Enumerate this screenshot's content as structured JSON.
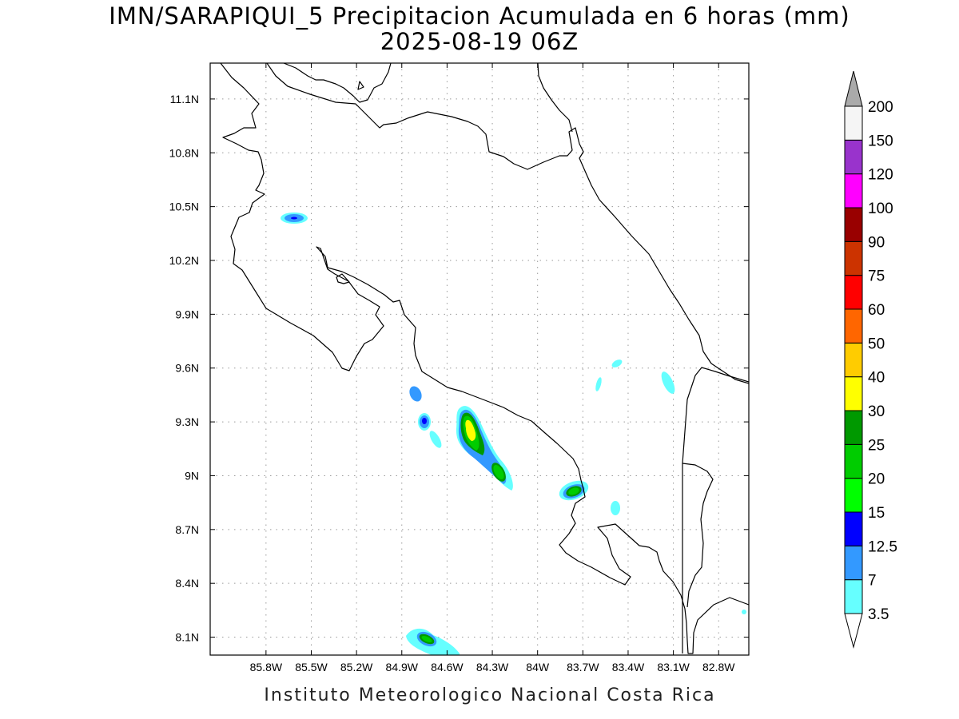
{
  "title": {
    "line1": "IMN/SARAPIQUI_5 Precipitacion Acumulada en 6 horas (mm)",
    "line2": "2025-08-19 06Z"
  },
  "footer": "Instituto Meteorologico Nacional Costa Rica",
  "map": {
    "lon_range": [
      -86.17,
      -82.6
    ],
    "lat_range": [
      8.0,
      11.3
    ],
    "lon_ticks": [
      {
        "value": -85.8,
        "label": "85.8W"
      },
      {
        "value": -85.5,
        "label": "85.5W"
      },
      {
        "value": -85.2,
        "label": "85.2W"
      },
      {
        "value": -84.9,
        "label": "84.9W"
      },
      {
        "value": -84.6,
        "label": "84.6W"
      },
      {
        "value": -84.3,
        "label": "84.3W"
      },
      {
        "value": -84.0,
        "label": "84W"
      },
      {
        "value": -83.7,
        "label": "83.7W"
      },
      {
        "value": -83.4,
        "label": "83.4W"
      },
      {
        "value": -83.1,
        "label": "83.1W"
      },
      {
        "value": -82.8,
        "label": "82.8W"
      }
    ],
    "lat_ticks": [
      {
        "value": 8.1,
        "label": "8.1N"
      },
      {
        "value": 8.4,
        "label": "8.4N"
      },
      {
        "value": 8.7,
        "label": "8.7N"
      },
      {
        "value": 9.0,
        "label": "9N"
      },
      {
        "value": 9.3,
        "label": "9.3N"
      },
      {
        "value": 9.6,
        "label": "9.6N"
      },
      {
        "value": 9.9,
        "label": "9.9N"
      },
      {
        "value": 10.2,
        "label": "10.2N"
      },
      {
        "value": 10.5,
        "label": "10.5N"
      },
      {
        "value": 10.8,
        "label": "10.8N"
      },
      {
        "value": 11.1,
        "label": "11.1N"
      }
    ],
    "grid": true
  },
  "colorbar": {
    "levels": [
      "3.5",
      "7",
      "12.5",
      "15",
      "20",
      "25",
      "30",
      "40",
      "50",
      "60",
      "75",
      "90",
      "100",
      "120",
      "150",
      "200"
    ],
    "colors": [
      "#66ffff",
      "#3399ff",
      "#0000ff",
      "#00ff00",
      "#00cc00",
      "#009900",
      "#ffff00",
      "#ffcc00",
      "#ff6600",
      "#ff0000",
      "#cc3300",
      "#990000",
      "#ff00ff",
      "#9933cc",
      "#f5f5f5"
    ],
    "over_color": "#aaaaaa",
    "under_color": "#ffffff"
  }
}
